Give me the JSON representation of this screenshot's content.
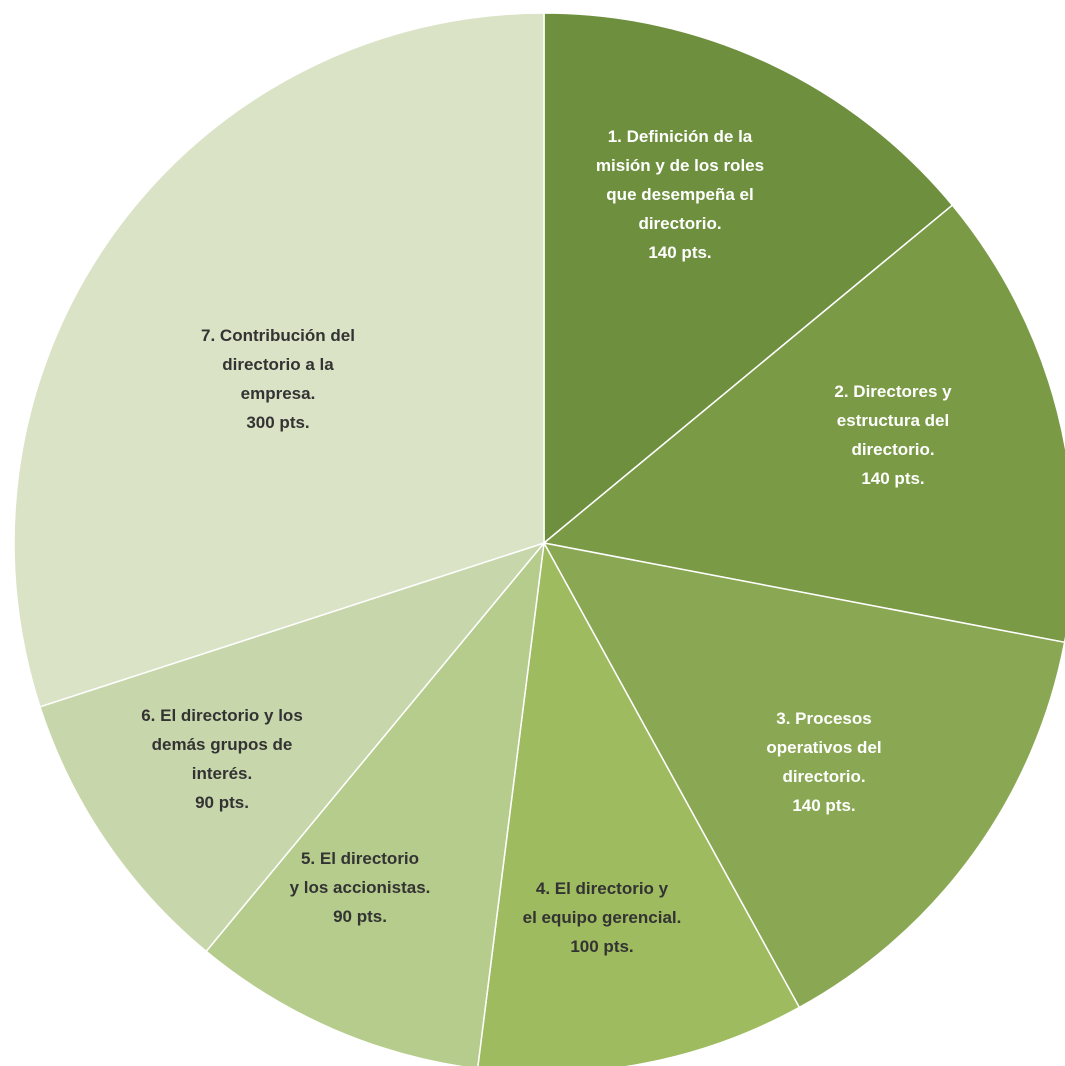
{
  "chart_data": {
    "type": "pie",
    "title": "",
    "slices": [
      {
        "lines": [
          "1. Definición de la",
          "misión y de los roles",
          "que desempeña el",
          "directorio.",
          "140 pts."
        ],
        "value": 140,
        "color": "#6e8f3e",
        "text_color": "#ffffff"
      },
      {
        "lines": [
          "2. Directores y",
          "estructura del",
          "directorio.",
          "140 pts."
        ],
        "value": 140,
        "color": "#7a9a45",
        "text_color": "#ffffff"
      },
      {
        "lines": [
          "3. Procesos",
          "operativos del",
          "directorio.",
          "140 pts."
        ],
        "value": 140,
        "color": "#8aa853",
        "text_color": "#ffffff"
      },
      {
        "lines": [
          "4. El directorio y",
          "el equipo gerencial.",
          "100 pts."
        ],
        "value": 100,
        "color": "#9ebb5f",
        "text_color": "#333333"
      },
      {
        "lines": [
          "5. El directorio",
          "y los accionistas.",
          "90 pts."
        ],
        "value": 90,
        "color": "#b6cc8c",
        "text_color": "#333333"
      },
      {
        "lines": [
          "6. El directorio y los",
          "demás grupos de",
          "interés.",
          "90 pts."
        ],
        "value": 90,
        "color": "#c8d7ab",
        "text_color": "#333333"
      },
      {
        "lines": [
          "7. Contribución del",
          "directorio a la",
          "empresa.",
          "300 pts."
        ],
        "value": 300,
        "color": "#dae3c6",
        "text_color": "#333333"
      }
    ],
    "start_angle_deg": 0,
    "direction": "clockwise",
    "legend": "none"
  }
}
